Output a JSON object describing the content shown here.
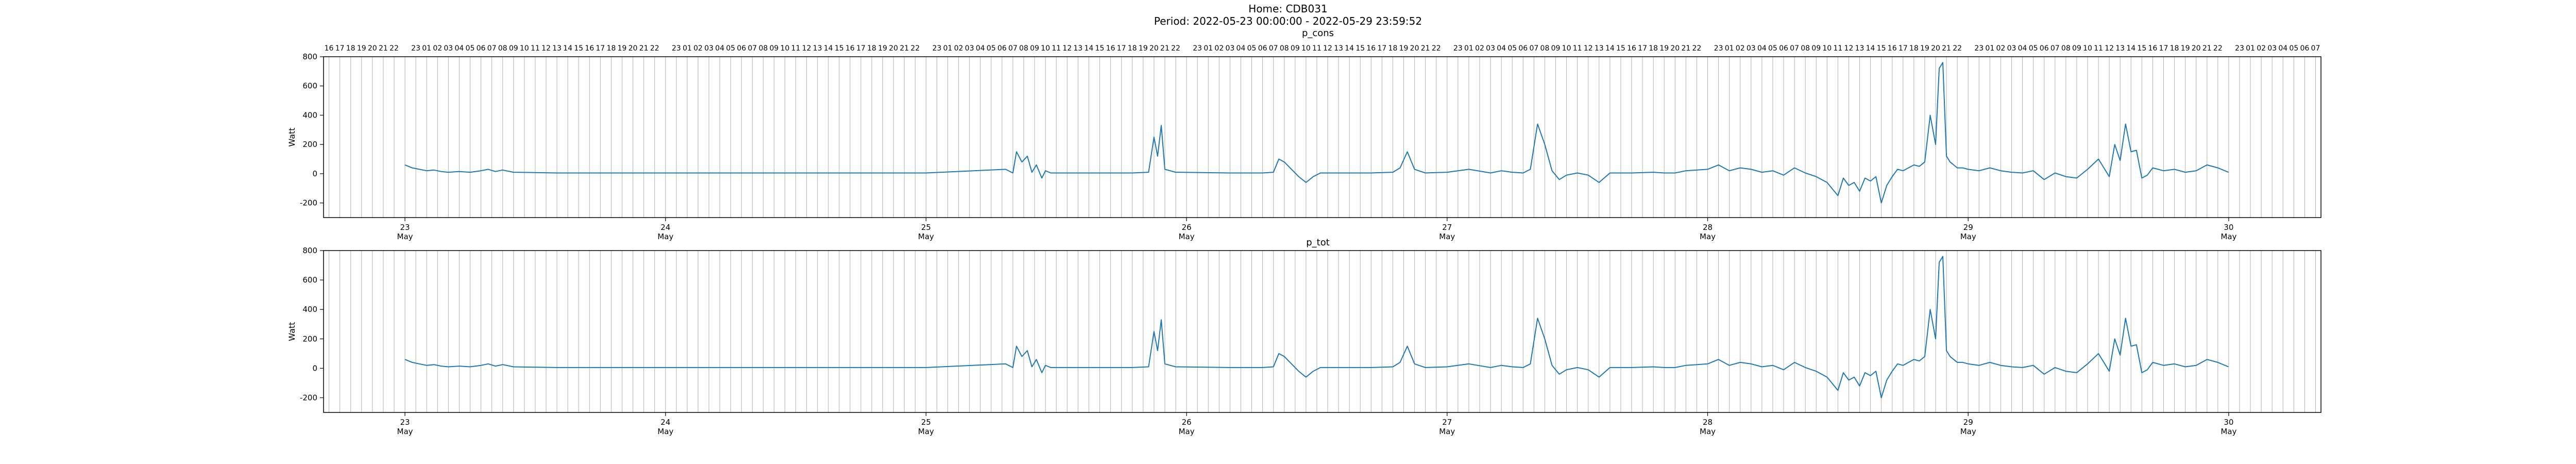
{
  "figure": {
    "title_line1": "Home: CDB031",
    "title_line2": "Period: 2022-05-23 00:00:00 - 2022-05-29 23:59:52"
  },
  "chart_data": [
    {
      "type": "line",
      "title": "p_cons",
      "ylabel": "Watt",
      "xlabel": "",
      "xlim": [
        "2022-05-22T16:30",
        "2022-05-30T08:30"
      ],
      "ylim": [
        -300,
        800
      ],
      "yticks": [
        -200,
        0,
        200,
        400,
        600,
        800
      ],
      "xticks": [
        {
          "pos": "2022-05-23T00:00",
          "label": "23",
          "sub": "May"
        },
        {
          "pos": "2022-05-24T00:00",
          "label": "24",
          "sub": "May"
        },
        {
          "pos": "2022-05-25T00:00",
          "label": "25",
          "sub": "May"
        },
        {
          "pos": "2022-05-26T00:00",
          "label": "26",
          "sub": "May"
        },
        {
          "pos": "2022-05-27T00:00",
          "label": "27",
          "sub": "May"
        },
        {
          "pos": "2022-05-28T00:00",
          "label": "28",
          "sub": "May"
        },
        {
          "pos": "2022-05-29T00:00",
          "label": "29",
          "sub": "May"
        },
        {
          "pos": "2022-05-30T00:00",
          "label": "30",
          "sub": "May"
        }
      ],
      "hour_gridlines": true,
      "top_hour_labels": true,
      "color": "#1f77b4",
      "series": [
        {
          "x": [
            "2022-05-23T00:00",
            "2022-05-23T00:40",
            "2022-05-23T01:20",
            "2022-05-23T02:00",
            "2022-05-23T02:40",
            "2022-05-23T03:20",
            "2022-05-23T04:00",
            "2022-05-23T05:00",
            "2022-05-23T06:00",
            "2022-05-23T07:00",
            "2022-05-23T07:40",
            "2022-05-23T08:20",
            "2022-05-23T09:00",
            "2022-05-23T10:00",
            "2022-05-23T14:00",
            "2022-05-24T00:00",
            "2022-05-24T12:00",
            "2022-05-25T00:00",
            "2022-05-25T08:00",
            "2022-05-25T07:20",
            "2022-05-25T08:20",
            "2022-05-25T08:50",
            "2022-05-25T09:20",
            "2022-05-25T09:45",
            "2022-05-25T10:10",
            "2022-05-25T10:40",
            "2022-05-25T11:00",
            "2022-05-25T11:30",
            "2022-05-25T13:00",
            "2022-05-25T16:00",
            "2022-05-25T19:00",
            "2022-05-25T20:30",
            "2022-05-25T21:00",
            "2022-05-25T21:20",
            "2022-05-25T21:40",
            "2022-05-25T22:00",
            "2022-05-25T23:00",
            "2022-05-26T04:00",
            "2022-05-26T07:00",
            "2022-05-26T08:00",
            "2022-05-26T08:30",
            "2022-05-26T09:00",
            "2022-05-26T09:40",
            "2022-05-26T10:20",
            "2022-05-26T11:00",
            "2022-05-26T11:40",
            "2022-05-26T12:20",
            "2022-05-26T13:00",
            "2022-05-26T15:00",
            "2022-05-26T17:00",
            "2022-05-26T19:00",
            "2022-05-26T19:40",
            "2022-05-26T20:20",
            "2022-05-26T21:00",
            "2022-05-26T22:00",
            "2022-05-27T00:00",
            "2022-05-27T02:00",
            "2022-05-27T04:00",
            "2022-05-27T05:00",
            "2022-05-27T06:00",
            "2022-05-27T07:00",
            "2022-05-27T07:40",
            "2022-05-27T08:20",
            "2022-05-27T09:00",
            "2022-05-27T09:40",
            "2022-05-27T10:20",
            "2022-05-27T11:00",
            "2022-05-27T12:00",
            "2022-05-27T13:00",
            "2022-05-27T14:00",
            "2022-05-27T15:00",
            "2022-05-27T17:00",
            "2022-05-27T19:00",
            "2022-05-27T20:00",
            "2022-05-27T21:00",
            "2022-05-27T22:00",
            "2022-05-28T00:00",
            "2022-05-28T01:00",
            "2022-05-28T02:00",
            "2022-05-28T03:00",
            "2022-05-28T04:00",
            "2022-05-28T05:00",
            "2022-05-28T06:00",
            "2022-05-28T07:00",
            "2022-05-28T08:00",
            "2022-05-28T09:00",
            "2022-05-28T10:00",
            "2022-05-28T11:00",
            "2022-05-28T12:00",
            "2022-05-28T12:30",
            "2022-05-28T13:00",
            "2022-05-28T13:30",
            "2022-05-28T14:00",
            "2022-05-28T14:30",
            "2022-05-28T15:00",
            "2022-05-28T15:30",
            "2022-05-28T16:00",
            "2022-05-28T16:30",
            "2022-05-28T17:00",
            "2022-05-28T17:30",
            "2022-05-28T18:00",
            "2022-05-28T18:30",
            "2022-05-28T19:00",
            "2022-05-28T19:30",
            "2022-05-28T20:00",
            "2022-05-28T20:30",
            "2022-05-28T21:00",
            "2022-05-28T21:20",
            "2022-05-28T21:40",
            "2022-05-28T22:00",
            "2022-05-28T22:20",
            "2022-05-28T22:40",
            "2022-05-28T23:00",
            "2022-05-28T23:30",
            "2022-05-29T00:00",
            "2022-05-29T01:00",
            "2022-05-29T02:00",
            "2022-05-29T03:00",
            "2022-05-29T04:00",
            "2022-05-29T05:00",
            "2022-05-29T06:00",
            "2022-05-29T07:00",
            "2022-05-29T08:00",
            "2022-05-29T09:00",
            "2022-05-29T10:00",
            "2022-05-29T11:00",
            "2022-05-29T12:00",
            "2022-05-29T13:00",
            "2022-05-29T13:30",
            "2022-05-29T14:00",
            "2022-05-29T14:30",
            "2022-05-29T15:00",
            "2022-05-29T15:30",
            "2022-05-29T16:00",
            "2022-05-29T16:30",
            "2022-05-29T17:00",
            "2022-05-29T18:00",
            "2022-05-29T19:00",
            "2022-05-29T20:00",
            "2022-05-29T21:00",
            "2022-05-29T22:00",
            "2022-05-29T23:00",
            "2022-05-29T23:59"
          ],
          "y": [
            60,
            40,
            30,
            20,
            25,
            15,
            10,
            15,
            10,
            20,
            30,
            15,
            25,
            10,
            5,
            5,
            5,
            5,
            5,
            30,
            150,
            80,
            120,
            10,
            60,
            -30,
            20,
            5,
            5,
            5,
            5,
            10,
            250,
            120,
            330,
            30,
            10,
            5,
            5,
            10,
            100,
            80,
            30,
            -20,
            -60,
            -20,
            5,
            5,
            5,
            5,
            10,
            40,
            150,
            30,
            5,
            10,
            30,
            5,
            20,
            10,
            5,
            30,
            340,
            200,
            20,
            -40,
            -10,
            5,
            -10,
            -60,
            5,
            5,
            10,
            5,
            5,
            20,
            30,
            60,
            20,
            40,
            30,
            10,
            20,
            -10,
            40,
            5,
            -20,
            -60,
            -150,
            -30,
            -80,
            -60,
            -120,
            -30,
            -50,
            -20,
            -200,
            -80,
            -20,
            30,
            20,
            40,
            60,
            50,
            80,
            400,
            200,
            720,
            760,
            120,
            80,
            60,
            40,
            40,
            30,
            20,
            40,
            20,
            10,
            5,
            20,
            -40,
            5,
            -20,
            -30,
            30,
            100,
            -20,
            200,
            90,
            340,
            150,
            160,
            -30,
            -10,
            40,
            20,
            30,
            10,
            20,
            60,
            40,
            10
          ]
        }
      ]
    },
    {
      "type": "line",
      "title": "p_tot",
      "ylabel": "Watt",
      "xlabel": "",
      "ylim": [
        -300,
        800
      ],
      "yticks": [
        -200,
        0,
        200,
        400,
        600,
        800
      ],
      "color": "#1f77b4",
      "series_ref": "same_as_p_cons"
    }
  ],
  "top_hour_labels": [
    "16",
    "17",
    "18",
    "19",
    "20",
    "21",
    "22",
    "23",
    "01",
    "02",
    "03",
    "04",
    "05",
    "06",
    "07",
    "08",
    "09",
    "10",
    "11",
    "12",
    "13",
    "14",
    "15",
    "16",
    "17",
    "18",
    "19",
    "20",
    "21",
    "22",
    "23",
    "01",
    "02",
    "03",
    "04",
    "05",
    "06",
    "07",
    "08",
    "09",
    "10",
    "11",
    "12",
    "13",
    "14",
    "15",
    "16",
    "17",
    "18",
    "19",
    "20",
    "21",
    "22",
    "23",
    "01",
    "02",
    "03",
    "04",
    "05",
    "06",
    "07",
    "08",
    "09",
    "10",
    "11",
    "12",
    "13",
    "14",
    "15",
    "16",
    "17",
    "18",
    "19",
    "20",
    "21",
    "22",
    "23",
    "01",
    "02",
    "03",
    "04",
    "05",
    "06",
    "07",
    "08",
    "09",
    "10",
    "11",
    "12",
    "13",
    "14",
    "15",
    "16",
    "17",
    "18",
    "19",
    "20",
    "21",
    "22",
    "23",
    "01",
    "02",
    "03",
    "04",
    "05",
    "06",
    "07",
    "08",
    "09",
    "10",
    "11",
    "12",
    "13",
    "14",
    "15",
    "16",
    "17",
    "18",
    "19",
    "20",
    "21",
    "22",
    "23",
    "01",
    "02",
    "03",
    "04",
    "05",
    "06",
    "07",
    "08",
    "09",
    "10",
    "11",
    "12",
    "13",
    "14",
    "15",
    "16",
    "17",
    "18",
    "19",
    "20",
    "21",
    "22",
    "23",
    "01",
    "02",
    "03",
    "04",
    "05",
    "06",
    "07",
    "08",
    "09",
    "10",
    "11",
    "12",
    "13",
    "14",
    "15",
    "16",
    "17",
    "18",
    "19",
    "20",
    "21",
    "22",
    "23",
    "01",
    "02",
    "03",
    "04",
    "05",
    "06",
    "07",
    "08"
  ]
}
